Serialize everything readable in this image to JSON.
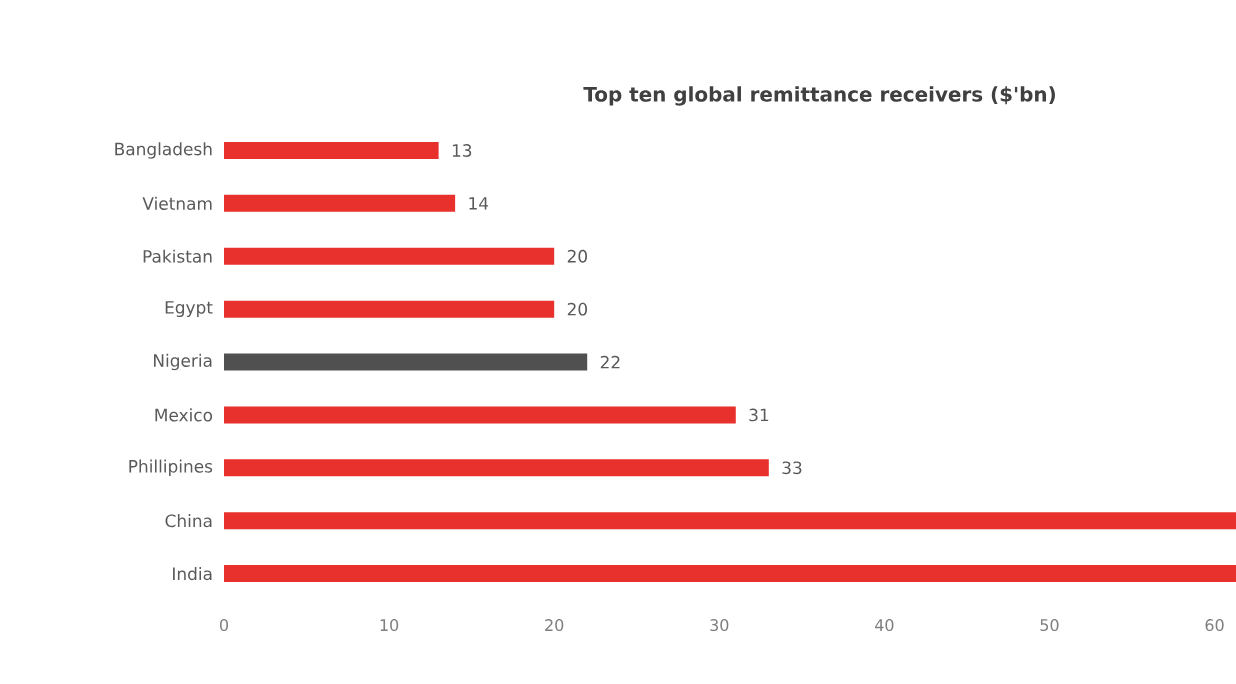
{
  "chart_data": {
    "type": "bar",
    "orientation": "horizontal",
    "title": "Top ten global remittance receivers ($'bn)",
    "categories": [
      "Bangladesh",
      "Vietnam",
      "Pakistan",
      "Egypt",
      "Nigeria",
      "Mexico",
      "Phillipines",
      "China",
      "India"
    ],
    "values": [
      13,
      14,
      20,
      20,
      22,
      31,
      33,
      61.3,
      61.3
    ],
    "value_labels": [
      "13",
      "14",
      "20",
      "20",
      "22",
      "31",
      "33",
      null,
      null
    ],
    "colors": [
      "#e8302c",
      "#e8302c",
      "#e8302c",
      "#e8302c",
      "#505050",
      "#e8302c",
      "#e8302c",
      "#e8302c",
      "#e8302c"
    ],
    "xlim": [
      0,
      61.3
    ],
    "xticks": [
      0,
      10,
      20,
      30,
      40,
      50,
      60
    ],
    "grid": false
  }
}
